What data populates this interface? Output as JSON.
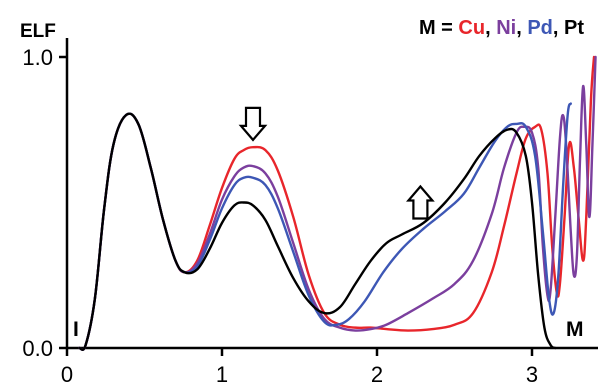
{
  "chart_data": {
    "type": "line",
    "ylabel": "ELF",
    "xlim": [
      0,
      3.4
    ],
    "ylim": [
      0,
      1.0
    ],
    "x_ticks": [
      "0",
      "1",
      "2",
      "3"
    ],
    "y_ticks": [
      "0.0",
      "1.0"
    ],
    "grid": false,
    "legend": {
      "prefix": "M = ",
      "separator": ", ",
      "items": [
        {
          "label": "Cu",
          "color": "#e8262b"
        },
        {
          "label": "Ni",
          "color": "#7b3f9e"
        },
        {
          "label": "Pd",
          "color": "#3d57b5"
        },
        {
          "label": "Pt",
          "color": "#000000"
        }
      ]
    },
    "annotations": {
      "start_label": "I",
      "end_label": "M",
      "arrow_down": {
        "x": 1.2,
        "y": 0.77
      },
      "arrow_up": {
        "x": 2.28,
        "y": 0.5
      }
    },
    "series": [
      {
        "name": "Cu",
        "color": "#e8262b",
        "points": [
          [
            0.08,
            0
          ],
          [
            0.12,
            0.01
          ],
          [
            0.18,
            0.17
          ],
          [
            0.24,
            0.48
          ],
          [
            0.3,
            0.7
          ],
          [
            0.38,
            0.8
          ],
          [
            0.46,
            0.77
          ],
          [
            0.54,
            0.62
          ],
          [
            0.62,
            0.44
          ],
          [
            0.7,
            0.3
          ],
          [
            0.76,
            0.26
          ],
          [
            0.84,
            0.3
          ],
          [
            0.92,
            0.42
          ],
          [
            1.0,
            0.55
          ],
          [
            1.08,
            0.65
          ],
          [
            1.14,
            0.68
          ],
          [
            1.2,
            0.69
          ],
          [
            1.28,
            0.68
          ],
          [
            1.36,
            0.61
          ],
          [
            1.46,
            0.45
          ],
          [
            1.56,
            0.25
          ],
          [
            1.66,
            0.12
          ],
          [
            1.76,
            0.08
          ],
          [
            1.86,
            0.07
          ],
          [
            1.96,
            0.07
          ],
          [
            2.06,
            0.065
          ],
          [
            2.2,
            0.06
          ],
          [
            2.36,
            0.065
          ],
          [
            2.5,
            0.08
          ],
          [
            2.62,
            0.12
          ],
          [
            2.74,
            0.26
          ],
          [
            2.82,
            0.42
          ],
          [
            2.9,
            0.6
          ],
          [
            2.96,
            0.72
          ],
          [
            3.02,
            0.76
          ],
          [
            3.06,
            0.75
          ],
          [
            3.1,
            0.6
          ],
          [
            3.13,
            0.35
          ],
          [
            3.16,
            0.19
          ],
          [
            3.18,
            0.22
          ],
          [
            3.21,
            0.45
          ],
          [
            3.24,
            0.7
          ],
          [
            3.27,
            0.62
          ],
          [
            3.3,
            0.45
          ],
          [
            3.33,
            0.3
          ],
          [
            3.35,
            0.45
          ],
          [
            3.38,
            0.85
          ],
          [
            3.4,
            1.0
          ]
        ]
      },
      {
        "name": "Ni",
        "color": "#7b3f9e",
        "points": [
          [
            0.08,
            0
          ],
          [
            0.12,
            0.01
          ],
          [
            0.18,
            0.17
          ],
          [
            0.24,
            0.48
          ],
          [
            0.3,
            0.7
          ],
          [
            0.38,
            0.8
          ],
          [
            0.46,
            0.77
          ],
          [
            0.54,
            0.62
          ],
          [
            0.62,
            0.44
          ],
          [
            0.7,
            0.3
          ],
          [
            0.76,
            0.26
          ],
          [
            0.84,
            0.29
          ],
          [
            0.92,
            0.39
          ],
          [
            1.0,
            0.51
          ],
          [
            1.08,
            0.59
          ],
          [
            1.14,
            0.62
          ],
          [
            1.2,
            0.625
          ],
          [
            1.28,
            0.6
          ],
          [
            1.36,
            0.52
          ],
          [
            1.46,
            0.36
          ],
          [
            1.56,
            0.2
          ],
          [
            1.66,
            0.1
          ],
          [
            1.76,
            0.07
          ],
          [
            1.86,
            0.06
          ],
          [
            1.96,
            0.065
          ],
          [
            2.06,
            0.08
          ],
          [
            2.2,
            0.12
          ],
          [
            2.36,
            0.17
          ],
          [
            2.5,
            0.22
          ],
          [
            2.62,
            0.3
          ],
          [
            2.74,
            0.46
          ],
          [
            2.82,
            0.62
          ],
          [
            2.9,
            0.74
          ],
          [
            2.95,
            0.76
          ],
          [
            3.0,
            0.74
          ],
          [
            3.04,
            0.62
          ],
          [
            3.07,
            0.35
          ],
          [
            3.1,
            0.18
          ],
          [
            3.12,
            0.2
          ],
          [
            3.15,
            0.45
          ],
          [
            3.18,
            0.72
          ],
          [
            3.2,
            0.8
          ],
          [
            3.22,
            0.7
          ],
          [
            3.25,
            0.4
          ],
          [
            3.27,
            0.25
          ],
          [
            3.29,
            0.32
          ],
          [
            3.31,
            0.65
          ],
          [
            3.33,
            0.9
          ],
          [
            3.35,
            0.7
          ],
          [
            3.37,
            0.45
          ],
          [
            3.39,
            0.7
          ],
          [
            3.41,
            1.0
          ]
        ]
      },
      {
        "name": "Pd",
        "color": "#3d57b5",
        "points": [
          [
            0.08,
            0
          ],
          [
            0.12,
            0.01
          ],
          [
            0.18,
            0.17
          ],
          [
            0.24,
            0.48
          ],
          [
            0.3,
            0.7
          ],
          [
            0.38,
            0.8
          ],
          [
            0.46,
            0.77
          ],
          [
            0.54,
            0.62
          ],
          [
            0.62,
            0.44
          ],
          [
            0.7,
            0.3
          ],
          [
            0.76,
            0.26
          ],
          [
            0.84,
            0.28
          ],
          [
            0.92,
            0.37
          ],
          [
            1.0,
            0.48
          ],
          [
            1.08,
            0.56
          ],
          [
            1.14,
            0.585
          ],
          [
            1.2,
            0.585
          ],
          [
            1.28,
            0.56
          ],
          [
            1.36,
            0.48
          ],
          [
            1.46,
            0.33
          ],
          [
            1.56,
            0.18
          ],
          [
            1.66,
            0.09
          ],
          [
            1.74,
            0.08
          ],
          [
            1.82,
            0.1
          ],
          [
            1.92,
            0.16
          ],
          [
            2.04,
            0.26
          ],
          [
            2.16,
            0.34
          ],
          [
            2.3,
            0.41
          ],
          [
            2.44,
            0.47
          ],
          [
            2.56,
            0.53
          ],
          [
            2.66,
            0.62
          ],
          [
            2.76,
            0.71
          ],
          [
            2.84,
            0.76
          ],
          [
            2.9,
            0.77
          ],
          [
            2.96,
            0.76
          ],
          [
            3.02,
            0.66
          ],
          [
            3.07,
            0.4
          ],
          [
            3.11,
            0.17
          ],
          [
            3.14,
            0.12
          ],
          [
            3.17,
            0.25
          ],
          [
            3.2,
            0.55
          ],
          [
            3.23,
            0.8
          ],
          [
            3.25,
            0.84
          ]
        ]
      },
      {
        "name": "Pt",
        "color": "#000000",
        "points": [
          [
            0.08,
            0
          ],
          [
            0.12,
            0.01
          ],
          [
            0.18,
            0.17
          ],
          [
            0.24,
            0.48
          ],
          [
            0.3,
            0.7
          ],
          [
            0.38,
            0.8
          ],
          [
            0.46,
            0.77
          ],
          [
            0.54,
            0.62
          ],
          [
            0.62,
            0.44
          ],
          [
            0.7,
            0.3
          ],
          [
            0.76,
            0.26
          ],
          [
            0.84,
            0.27
          ],
          [
            0.92,
            0.34
          ],
          [
            1.0,
            0.43
          ],
          [
            1.08,
            0.49
          ],
          [
            1.14,
            0.5
          ],
          [
            1.2,
            0.49
          ],
          [
            1.28,
            0.44
          ],
          [
            1.36,
            0.35
          ],
          [
            1.46,
            0.24
          ],
          [
            1.56,
            0.16
          ],
          [
            1.66,
            0.12
          ],
          [
            1.76,
            0.14
          ],
          [
            1.86,
            0.22
          ],
          [
            1.96,
            0.3
          ],
          [
            2.06,
            0.36
          ],
          [
            2.16,
            0.39
          ],
          [
            2.3,
            0.43
          ],
          [
            2.44,
            0.5
          ],
          [
            2.56,
            0.58
          ],
          [
            2.66,
            0.66
          ],
          [
            2.76,
            0.72
          ],
          [
            2.84,
            0.75
          ],
          [
            2.9,
            0.74
          ],
          [
            2.96,
            0.66
          ],
          [
            3.0,
            0.5
          ],
          [
            3.04,
            0.25
          ],
          [
            3.08,
            0.07
          ],
          [
            3.12,
            0.01
          ],
          [
            3.15,
            0
          ]
        ]
      }
    ]
  }
}
